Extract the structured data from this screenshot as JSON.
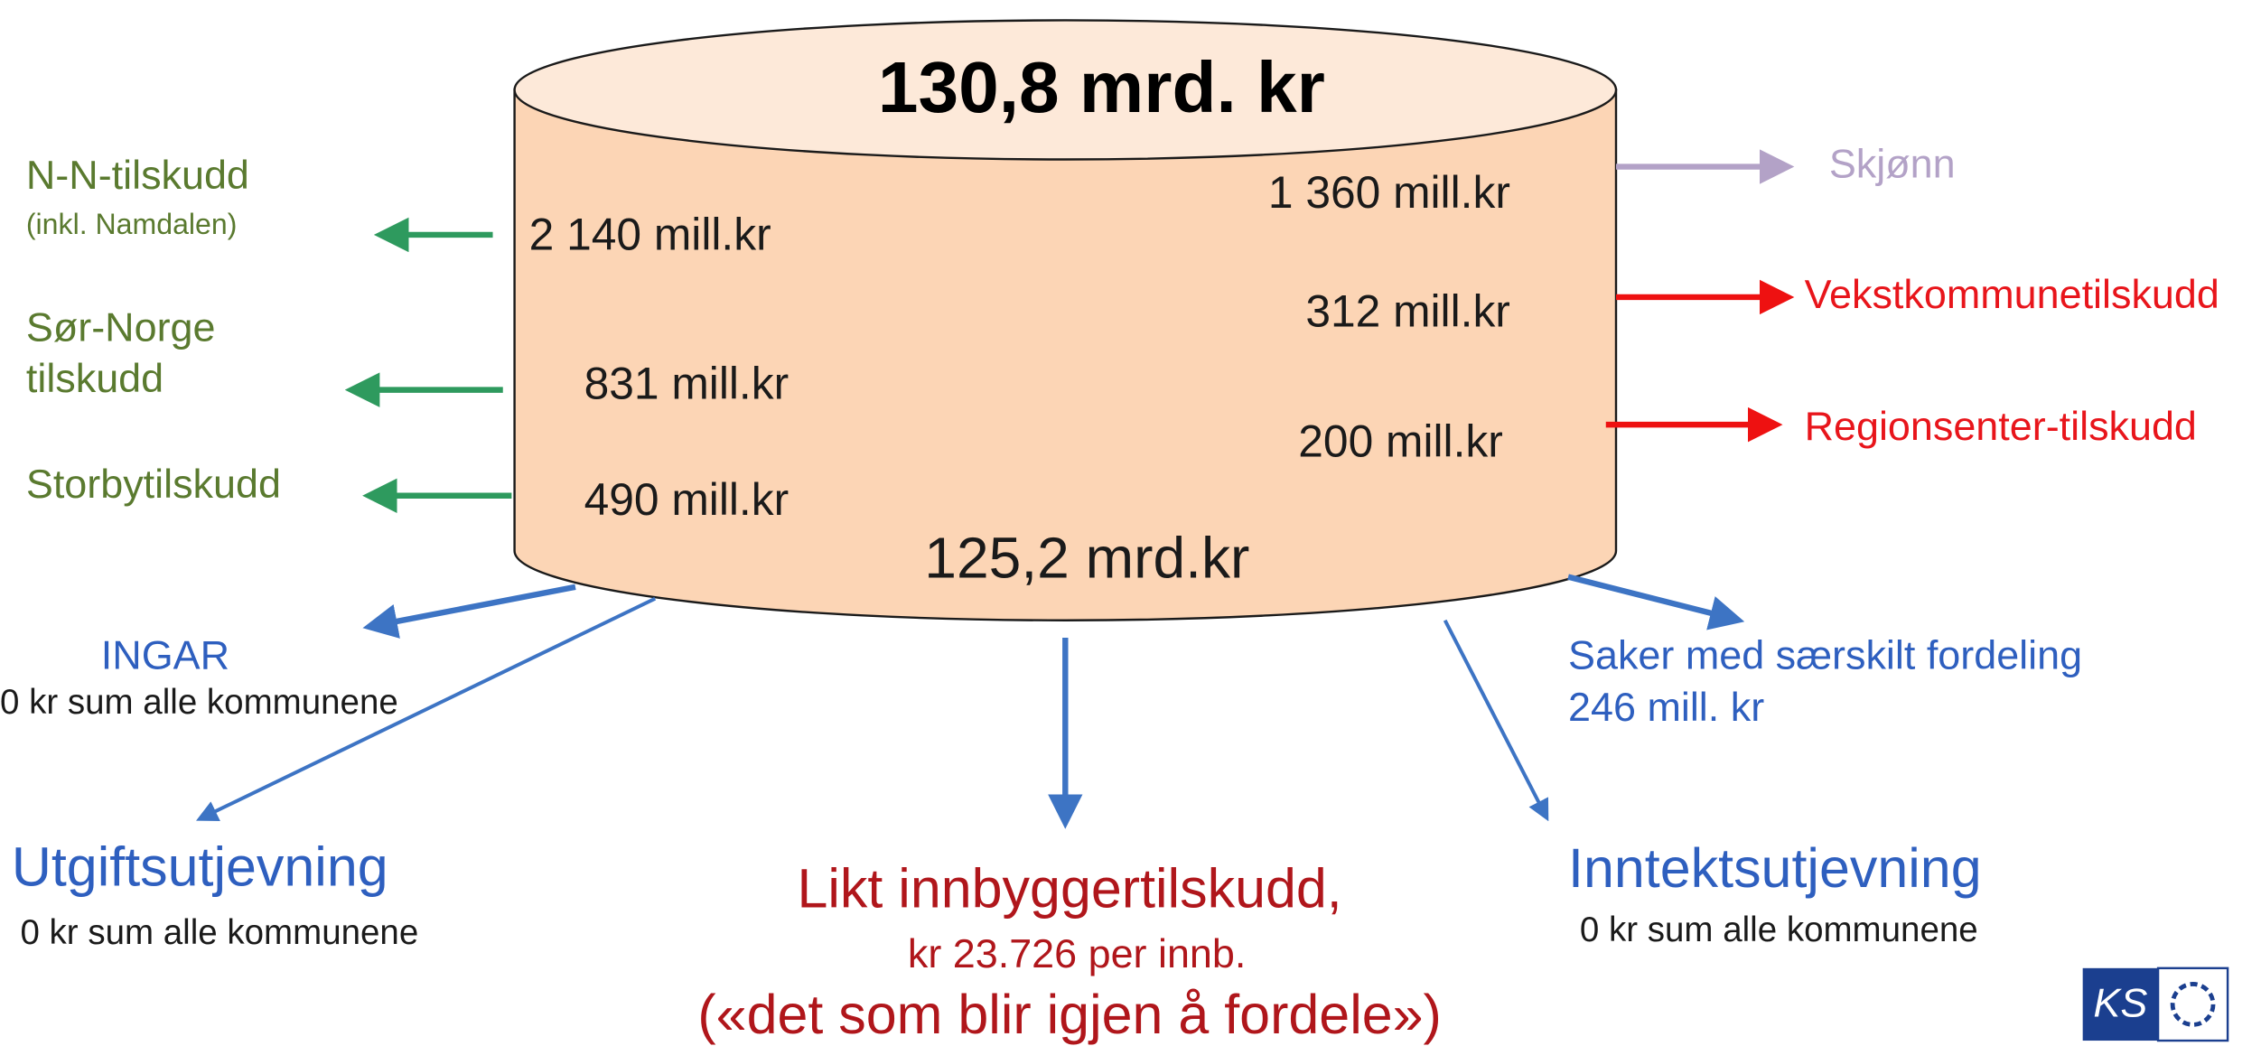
{
  "cylinder": {
    "total": "130,8 mrd. kr",
    "remaining": "125,2 mrd.kr"
  },
  "left": [
    {
      "label": "N-N-tilskudd",
      "note": "(inkl. Namdalen)",
      "amount": "2 140 mill.kr"
    },
    {
      "label": "Sør-Norge",
      "label2": "tilskudd",
      "amount": "831 mill.kr"
    },
    {
      "label": "Storbytilskudd",
      "amount": "490 mill.kr"
    }
  ],
  "right": [
    {
      "label": "Skjønn",
      "amount": "1 360 mill.kr"
    },
    {
      "label": "Vekstkommunetilskudd",
      "amount": "312 mill.kr"
    },
    {
      "label": "Regionsenter-tilskudd",
      "amount": "200 mill.kr"
    }
  ],
  "bottom": {
    "ingar": {
      "label": "INGAR",
      "note": "0 kr sum alle kommunene"
    },
    "utgift": {
      "label": "Utgiftsutjevning",
      "note": "0 kr sum alle kommunene"
    },
    "likt": {
      "label": "Likt innbyggertilskudd,",
      "note": "kr 23.726 per innb.",
      "note2": "(«det som blir igjen å fordele»)"
    },
    "saker": {
      "label": "Saker med særskilt fordeling",
      "amount": "246 mill. kr"
    },
    "inntekt": {
      "label": "Inntektsutjevning",
      "note": "0 kr sum alle kommunene"
    }
  },
  "logo": "KS"
}
